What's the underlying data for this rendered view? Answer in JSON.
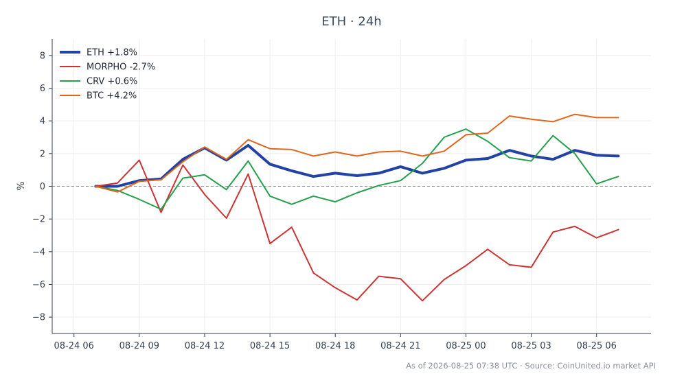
{
  "chart_data": {
    "type": "line",
    "title": "ETH · 24h",
    "ylabel": "%",
    "xlabel": "",
    "ylim": [
      -9,
      9
    ],
    "y_ticks": [
      -8,
      -6,
      -4,
      -2,
      0,
      2,
      4,
      6,
      8
    ],
    "x_ticks": [
      "08-24 06",
      "08-24 09",
      "08-24 12",
      "08-24 15",
      "08-24 18",
      "08-24 21",
      "08-25 00",
      "08-25 03",
      "08-25 06"
    ],
    "x_hours": [
      "08-24 07",
      "08-24 08",
      "08-24 09",
      "08-24 10",
      "08-24 11",
      "08-24 12",
      "08-24 13",
      "08-24 14",
      "08-24 15",
      "08-24 16",
      "08-24 17",
      "08-24 18",
      "08-24 19",
      "08-24 20",
      "08-24 21",
      "08-24 22",
      "08-24 23",
      "08-25 00",
      "08-25 01",
      "08-25 02",
      "08-25 03",
      "08-25 04",
      "08-25 05",
      "08-25 06",
      "08-25 07"
    ],
    "grid": true,
    "zero_line": true,
    "legend_position": "top-left",
    "series": [
      {
        "name": "ETH +1.8%",
        "color": "#2343a4",
        "width": 4,
        "values": [
          0.0,
          0.0,
          0.35,
          0.45,
          1.65,
          2.35,
          1.6,
          2.5,
          1.35,
          0.95,
          0.6,
          0.8,
          0.65,
          0.8,
          1.2,
          0.8,
          1.1,
          1.6,
          1.7,
          2.2,
          1.85,
          1.65,
          2.2,
          1.9,
          1.85
        ]
      },
      {
        "name": "MORPHO -2.7%",
        "color": "#cc3333",
        "width": 2,
        "values": [
          0.0,
          0.2,
          1.6,
          -1.6,
          1.3,
          -0.5,
          -1.95,
          0.75,
          -3.5,
          -2.5,
          -5.3,
          -6.2,
          -6.95,
          -5.5,
          -5.65,
          -7.0,
          -5.7,
          -4.85,
          -3.85,
          -4.8,
          -4.95,
          -2.8,
          -2.45,
          -3.15,
          -2.65
        ]
      },
      {
        "name": "CRV +0.6%",
        "color": "#22a04a",
        "width": 2,
        "values": [
          0.0,
          -0.25,
          -0.8,
          -1.4,
          0.5,
          0.7,
          -0.2,
          1.55,
          -0.6,
          -1.1,
          -0.6,
          -0.95,
          -0.4,
          0.05,
          0.35,
          1.4,
          3.0,
          3.5,
          2.75,
          1.75,
          1.55,
          3.1,
          2.0,
          0.15,
          0.6
        ]
      },
      {
        "name": "BTC +4.2%",
        "color": "#e0661c",
        "width": 2,
        "values": [
          0.0,
          -0.35,
          0.3,
          0.4,
          1.5,
          2.4,
          1.65,
          2.85,
          2.3,
          2.25,
          1.85,
          2.1,
          1.85,
          2.1,
          2.15,
          1.85,
          2.15,
          3.15,
          3.25,
          4.3,
          4.1,
          3.95,
          4.4,
          4.2,
          4.2
        ]
      }
    ]
  },
  "footer": "As of 2026-08-25 07:38 UTC · Source: CoinUnited.io market API"
}
